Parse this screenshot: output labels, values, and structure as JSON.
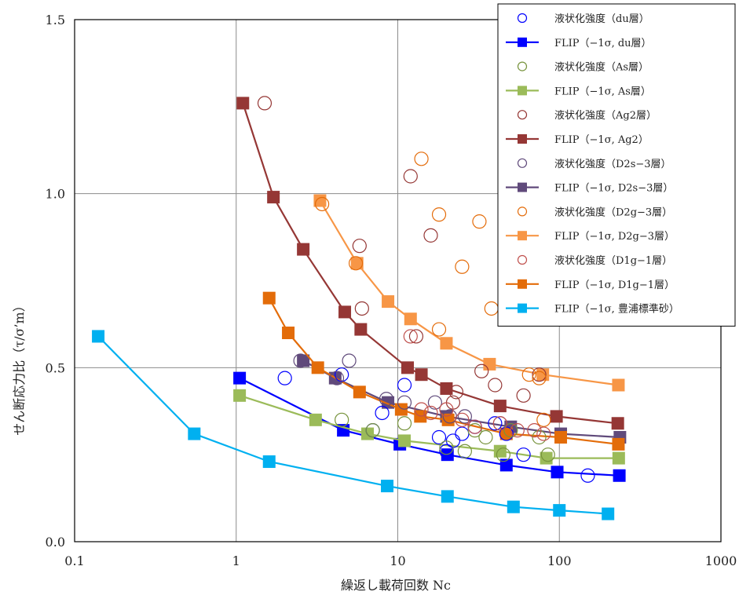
{
  "chart_data": {
    "type": "scatter",
    "xlabel": "繰返し載荷回数 Nc",
    "ylabel": "せん断応力比（τ/σ’m）",
    "x_scale": "log",
    "xlim": [
      0.1,
      1000
    ],
    "ylim": [
      0.0,
      1.5
    ],
    "x_ticks": [
      0.1,
      1,
      10,
      100,
      1000
    ],
    "x_tick_labels": [
      "0.1",
      "1",
      "10",
      "100",
      "1000"
    ],
    "y_ticks": [
      0.0,
      0.5,
      1.0,
      1.5
    ],
    "y_tick_labels": [
      "0.0",
      "0.5",
      "1.0",
      "1.5"
    ],
    "grid": true,
    "legend_position": "top-right",
    "series": [
      {
        "name": "液状化強度（du層）",
        "style": "circle",
        "color": "#0000ff",
        "x": [
          2,
          4.5,
          7,
          8,
          11,
          18,
          20,
          22,
          25,
          30,
          40,
          47,
          60,
          150
        ],
        "y": [
          0.47,
          0.48,
          0.32,
          0.37,
          0.45,
          0.3,
          0.26,
          0.29,
          0.31,
          0.33,
          0.34,
          0.31,
          0.25,
          0.19
        ]
      },
      {
        "name": "FLIP（−1σ, du層）",
        "style": "line-square",
        "color": "#0000ff",
        "x": [
          1.05,
          4.6,
          10.3,
          20.3,
          47,
          97,
          235
        ],
        "y": [
          0.47,
          0.32,
          0.28,
          0.25,
          0.22,
          0.2,
          0.19
        ]
      },
      {
        "name": "液状化強度（As層）",
        "style": "circle",
        "color": "#77933c",
        "x": [
          4.5,
          7,
          11,
          20,
          26,
          30,
          35,
          45,
          50,
          75,
          85
        ],
        "y": [
          0.35,
          0.32,
          0.34,
          0.27,
          0.26,
          0.32,
          0.3,
          0.25,
          0.32,
          0.3,
          0.25
        ]
      },
      {
        "name": "FLIP（−1σ, As層）",
        "style": "line-square",
        "color": "#9bbb59",
        "x": [
          1.05,
          3.1,
          6.5,
          11,
          43,
          83,
          233
        ],
        "y": [
          0.42,
          0.35,
          0.31,
          0.29,
          0.26,
          0.24,
          0.24
        ]
      },
      {
        "name": "液状化強度（Ag2層）",
        "style": "circle",
        "color": "#953735",
        "x": [
          1.5,
          5.8,
          6,
          12,
          13,
          16,
          22,
          23,
          33,
          40,
          60,
          75
        ],
        "y": [
          1.26,
          0.85,
          0.67,
          1.05,
          0.59,
          0.88,
          0.4,
          0.43,
          0.49,
          0.45,
          0.42,
          0.48
        ]
      },
      {
        "name": "FLIP（−1σ, Ag2）",
        "style": "line-square",
        "color": "#953735",
        "x": [
          1.1,
          1.7,
          2.6,
          4.7,
          5.9,
          11.5,
          14,
          20,
          43,
          96,
          230
        ],
        "y": [
          1.26,
          0.99,
          0.84,
          0.66,
          0.61,
          0.5,
          0.48,
          0.44,
          0.39,
          0.36,
          0.34
        ]
      },
      {
        "name": "液状化強度（D2s−3層）",
        "style": "circle",
        "color": "#604a7b",
        "x": [
          2.5,
          4.2,
          5,
          8.5,
          11,
          17,
          21,
          26,
          43
        ],
        "y": [
          0.52,
          0.47,
          0.52,
          0.41,
          0.4,
          0.4,
          0.36,
          0.36,
          0.34
        ]
      },
      {
        "name": "FLIP（−1σ, D2s−3層）",
        "style": "line-square",
        "color": "#604a7b",
        "x": [
          2.6,
          4.1,
          8.7,
          20,
          50,
          102,
          237
        ],
        "y": [
          0.52,
          0.47,
          0.4,
          0.36,
          0.33,
          0.31,
          0.3
        ]
      },
      {
        "name": "液状化強度（D2g−3層）",
        "style": "circle",
        "color": "#e46c0a",
        "x": [
          3.4,
          5.5,
          14,
          18,
          18,
          25,
          32,
          38,
          65,
          75,
          80
        ],
        "y": [
          0.97,
          0.8,
          1.1,
          0.94,
          0.61,
          0.79,
          0.92,
          0.67,
          0.48,
          0.47,
          0.35
        ]
      },
      {
        "name": "FLIP（−1σ, D2g−3層）",
        "style": "line-square",
        "color": "#f79646",
        "x": [
          3.3,
          5.6,
          8.7,
          12,
          20,
          37,
          79,
          232
        ],
        "y": [
          0.98,
          0.8,
          0.69,
          0.64,
          0.57,
          0.51,
          0.48,
          0.45
        ]
      },
      {
        "name": "液状化強度（D1g−1層）",
        "style": "circle",
        "color": "#c0504d",
        "x": [
          12,
          14,
          16,
          20,
          25,
          30,
          43,
          55,
          70,
          80
        ],
        "y": [
          0.59,
          0.38,
          0.37,
          0.38,
          0.35,
          0.33,
          0.34,
          0.32,
          0.32,
          0.31
        ]
      },
      {
        "name": "FLIP（−1σ, D1g−1層）",
        "style": "line-square",
        "color": "#e36c09",
        "x": [
          1.6,
          2.1,
          3.2,
          5.8,
          10.5,
          13.8,
          20.5,
          47,
          102,
          232
        ],
        "y": [
          0.7,
          0.6,
          0.5,
          0.43,
          0.38,
          0.36,
          0.35,
          0.31,
          0.3,
          0.28
        ]
      },
      {
        "name": "FLIP（−1σ, 豊浦標準砂）",
        "style": "line-square",
        "color": "#00b0f0",
        "x": [
          0.14,
          0.55,
          1.6,
          8.6,
          20.3,
          52,
          100,
          200
        ],
        "y": [
          0.59,
          0.31,
          0.23,
          0.16,
          0.13,
          0.1,
          0.09,
          0.08
        ]
      }
    ]
  }
}
